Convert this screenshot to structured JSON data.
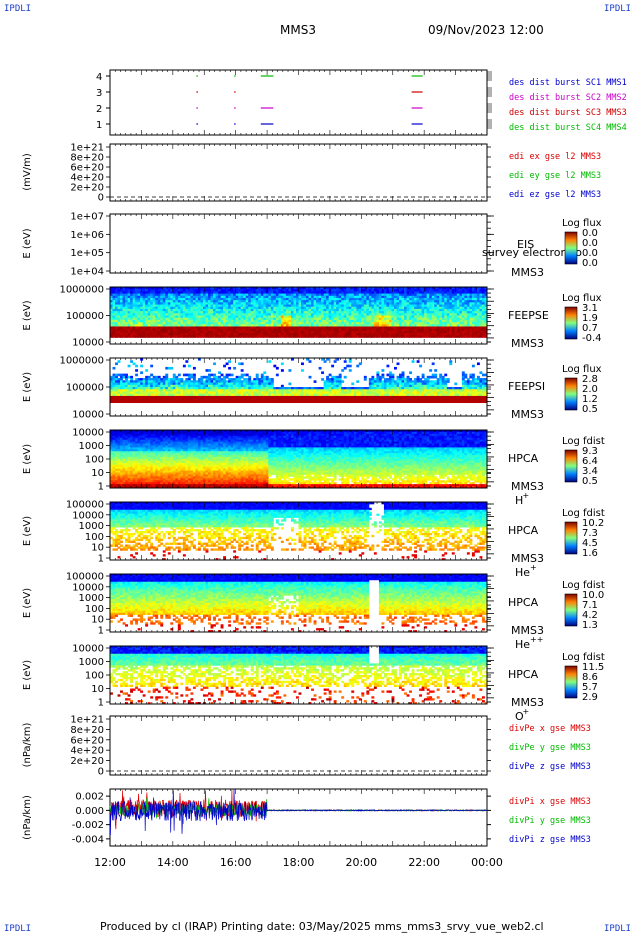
{
  "header": {
    "corner_label": "IPDLI",
    "spacecraft": "MMS3",
    "datetime": "09/Nov/2023 12:00"
  },
  "footer": {
    "text": "Produced by cl (IRAP)   Printing date: 03/May/2025   mms_mms3_srvy_vue_web2.cl"
  },
  "colors": {
    "sc1": "#0000cc",
    "sc2": "#cc00cc",
    "sc3": "#cc0000",
    "sc4": "#00bb00",
    "x": "#dd0000",
    "y": "#00bb00",
    "z": "#0000cc"
  },
  "chart_data": [
    {
      "id": "burst",
      "type": "scatter",
      "yticks": [
        "1",
        "2",
        "3",
        "4"
      ],
      "legend": [
        {
          "name": "des dist burst SC1 MMS1",
          "color": "#0000cc"
        },
        {
          "name": "des dist burst SC2 MMS2",
          "color": "#cc00cc"
        },
        {
          "name": "des dist burst SC3 MMS3",
          "color": "#cc0000"
        },
        {
          "name": "des dist burst SC4 MMS4",
          "color": "#00bb00"
        }
      ],
      "segments": [
        {
          "sc": 1,
          "t0": 14.75,
          "t1": 14.8
        },
        {
          "sc": 1,
          "t0": 15.95,
          "t1": 16.0
        },
        {
          "sc": 1,
          "t0": 16.8,
          "t1": 17.2
        },
        {
          "sc": 1,
          "t0": 21.6,
          "t1": 21.95
        },
        {
          "sc": 2,
          "t0": 14.75,
          "t1": 14.8
        },
        {
          "sc": 2,
          "t0": 15.95,
          "t1": 16.0
        },
        {
          "sc": 2,
          "t0": 16.8,
          "t1": 17.2
        },
        {
          "sc": 2,
          "t0": 21.6,
          "t1": 21.95
        },
        {
          "sc": 3,
          "t0": 14.75,
          "t1": 14.8
        },
        {
          "sc": 3,
          "t0": 15.95,
          "t1": 16.0
        },
        {
          "sc": 3,
          "t0": 21.6,
          "t1": 21.95
        },
        {
          "sc": 4,
          "t0": 14.75,
          "t1": 14.8
        },
        {
          "sc": 4,
          "t0": 15.95,
          "t1": 16.0
        },
        {
          "sc": 4,
          "t0": 16.8,
          "t1": 17.2
        },
        {
          "sc": 4,
          "t0": 21.6,
          "t1": 21.95
        }
      ]
    },
    {
      "id": "edi",
      "type": "line",
      "ylabel": "(mV/m)",
      "yticks": [
        "1e+21",
        "8e+20",
        "6e+20",
        "4e+20",
        "2e+20",
        "0"
      ],
      "legend": [
        {
          "name": "edi ex gse l2 MMS3",
          "color": "#dd0000"
        },
        {
          "name": "edi ey gse l2 MMS3",
          "color": "#00bb00"
        },
        {
          "name": "edi ez gse l2 MMS3",
          "color": "#0000cc"
        }
      ]
    },
    {
      "id": "eis",
      "type": "heatmap",
      "ylabel": "E (eV)",
      "yticks": [
        "1e+07",
        "1e+06",
        "1e+05",
        "1e+04"
      ],
      "instrument": "EIS",
      "spacecraft": "MMS3",
      "overlay": "survey electron to",
      "cbar_title": "Log flux",
      "cbar_ticks": [
        "0.0",
        "0.0",
        "0.0",
        "0.0"
      ]
    },
    {
      "id": "feepse",
      "type": "heatmap",
      "ylabel": "E (eV)",
      "yticks": [
        "1000000",
        "100000",
        "10000"
      ],
      "instrument": "FEEPSE",
      "spacecraft": "MMS3",
      "cbar_title": "Log flux",
      "cbar_ticks": [
        "3.1",
        "1.9",
        "0.7",
        "-0.4"
      ]
    },
    {
      "id": "feepsi",
      "type": "heatmap",
      "ylabel": "E (eV)",
      "yticks": [
        "1000000",
        "100000",
        "10000"
      ],
      "instrument": "FEEPSI",
      "spacecraft": "MMS3",
      "cbar_title": "Log flux",
      "cbar_ticks": [
        "2.8",
        "2.0",
        "1.2",
        "0.5"
      ]
    },
    {
      "id": "hpca_h",
      "type": "heatmap",
      "ylabel": "E (eV)",
      "yticks": [
        "10000",
        "1000",
        "100",
        "10",
        "1"
      ],
      "instrument": "HPCA",
      "spacecraft": "MMS3",
      "species": "H",
      "charge": "+",
      "cbar_title": "Log fdist",
      "cbar_ticks": [
        "9.3",
        "6.4",
        "3.4",
        "0.5"
      ]
    },
    {
      "id": "hpca_he",
      "type": "heatmap",
      "ylabel": "E (eV)",
      "yticks": [
        "100000",
        "10000",
        "1000",
        "100",
        "10",
        "1"
      ],
      "instrument": "HPCA",
      "spacecraft": "MMS3",
      "species": "He",
      "charge": "+",
      "cbar_title": "Log fdist",
      "cbar_ticks": [
        "10.2",
        "7.3",
        "4.5",
        "1.6"
      ]
    },
    {
      "id": "hpca_hepp",
      "type": "heatmap",
      "ylabel": "E (eV)",
      "yticks": [
        "100000",
        "10000",
        "1000",
        "100",
        "10",
        "1"
      ],
      "instrument": "HPCA",
      "spacecraft": "MMS3",
      "species": "He",
      "charge": "++",
      "cbar_title": "Log fdist",
      "cbar_ticks": [
        "10.0",
        "7.1",
        "4.2",
        "1.3"
      ]
    },
    {
      "id": "hpca_o",
      "type": "heatmap",
      "ylabel": "E (eV)",
      "yticks": [
        "10000",
        "1000",
        "100",
        "10",
        "1"
      ],
      "instrument": "HPCA",
      "spacecraft": "MMS3",
      "species": "O",
      "charge": "+",
      "cbar_title": "Log fdist",
      "cbar_ticks": [
        "11.5",
        "8.6",
        "5.7",
        "2.9"
      ]
    },
    {
      "id": "divpe",
      "type": "line",
      "ylabel": "(nPa/km)",
      "yticks": [
        "1e+21",
        "8e+20",
        "6e+20",
        "4e+20",
        "2e+20",
        "0"
      ],
      "legend": [
        {
          "name": "divPe x gse MMS3",
          "color": "#dd0000"
        },
        {
          "name": "divPe y gse MMS3",
          "color": "#00bb00"
        },
        {
          "name": "divPe z gse MMS3",
          "color": "#0000cc"
        }
      ]
    },
    {
      "id": "divpi",
      "type": "line",
      "ylabel": "(nPa/km)",
      "yticks": [
        "0.002",
        "0.000",
        "-0.002",
        "-0.004"
      ],
      "ylim": [
        -0.005,
        0.003
      ],
      "legend": [
        {
          "name": "divPi x gse MMS3",
          "color": "#dd0000"
        },
        {
          "name": "divPi y gse MMS3",
          "color": "#00bb00"
        },
        {
          "name": "divPi z gse MMS3",
          "color": "#0000cc"
        }
      ]
    }
  ],
  "xaxis": {
    "range_hours": [
      12,
      24
    ],
    "ticks": [
      "12:00",
      "14:00",
      "16:00",
      "18:00",
      "20:00",
      "22:00",
      "00:00"
    ]
  }
}
